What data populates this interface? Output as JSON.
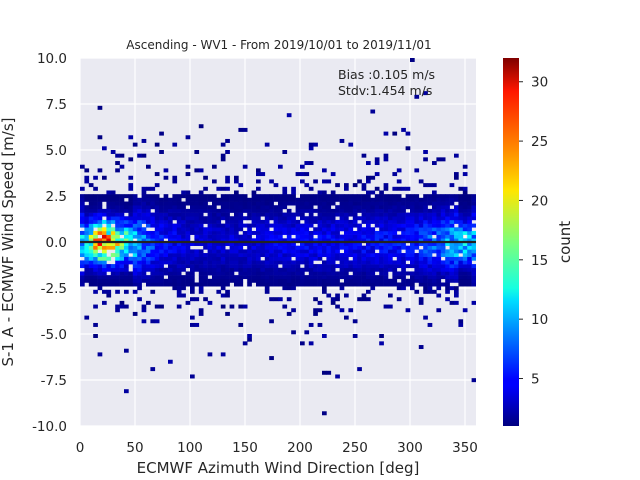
{
  "chart_data": {
    "type": "heatmap",
    "title": "Ascending - WV1 - From 2019/10/01 to 2019/11/01",
    "xlabel": "ECMWF Azimuth Wind Direction [deg]",
    "ylabel": "S-1 A - ECMWF Wind Speed [m/s]",
    "xlim": [
      0,
      360
    ],
    "ylim": [
      -10,
      10
    ],
    "x_ticks": [
      "0",
      "50",
      "100",
      "150",
      "200",
      "250",
      "300",
      "350"
    ],
    "y_ticks": [
      "10.0",
      "7.5",
      "5.0",
      "2.5",
      "0.0",
      "-2.5",
      "-5.0",
      "-7.5",
      "-10.0"
    ],
    "bin_width_x": 4,
    "bin_width_y": 0.2,
    "grid": true,
    "annotations": [
      "Bias :0.105 m/s",
      "Stdv:1.454 m/s"
    ],
    "annotation_values": {
      "bias": 0.105,
      "stdv": 1.454
    },
    "zero_line": 0,
    "colorbar": {
      "label": "count",
      "range": [
        1,
        32
      ],
      "ticks": [
        "5",
        "10",
        "15",
        "20",
        "25",
        "30"
      ],
      "colormap": "jet"
    },
    "density_profile": [
      {
        "x": 0,
        "peak": 10
      },
      {
        "x": 10,
        "peak": 18
      },
      {
        "x": 20,
        "peak": 28
      },
      {
        "x": 30,
        "peak": 22
      },
      {
        "x": 50,
        "peak": 12
      },
      {
        "x": 70,
        "peak": 6
      },
      {
        "x": 100,
        "peak": 4
      },
      {
        "x": 150,
        "peak": 4
      },
      {
        "x": 200,
        "peak": 5
      },
      {
        "x": 250,
        "peak": 5
      },
      {
        "x": 300,
        "peak": 6
      },
      {
        "x": 330,
        "peak": 9
      },
      {
        "x": 350,
        "peak": 14
      },
      {
        "x": 360,
        "peak": 10
      }
    ],
    "core_y_range": [
      -2.5,
      2.5
    ]
  },
  "colors": {
    "plot_background": "#eaeaf2",
    "grid": "#ffffff",
    "zero_line": "#222222"
  }
}
